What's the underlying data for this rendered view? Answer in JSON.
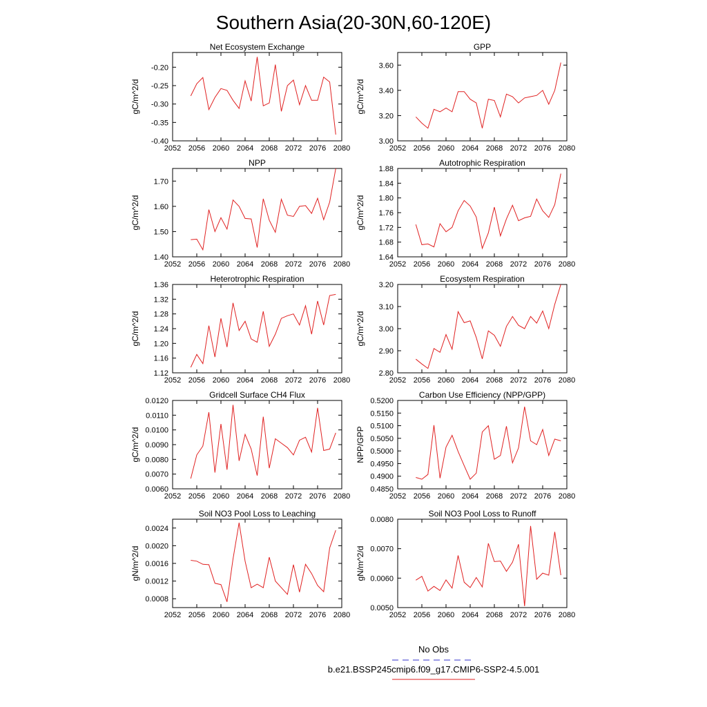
{
  "figure": {
    "title": "Southern Asia(20-30N,60-120E)",
    "legend": [
      {
        "label": "No Obs",
        "color": "#3333cc",
        "style": "dashed"
      },
      {
        "label": "b.e21.BSSP245cmip6.f09_g17.CMIP6-SSP2-4.5.001",
        "color": "#e02020",
        "style": "solid"
      }
    ]
  },
  "chart_data": [
    {
      "type": "line",
      "title": "Net Ecosystem Exchange",
      "ylabel": "gC/m^2/d",
      "xlim": [
        2052,
        2080
      ],
      "ylim": [
        -0.4,
        -0.16
      ],
      "xticks": [
        "2052",
        "2056",
        "2060",
        "2064",
        "2068",
        "2072",
        "2076",
        "2080"
      ],
      "yticks": [
        "-0.40",
        "-0.35",
        "-0.30",
        "-0.25",
        "-0.20"
      ],
      "x": [
        2055,
        2056,
        2057,
        2058,
        2059,
        2060,
        2061,
        2062,
        2063,
        2064,
        2065,
        2066,
        2067,
        2068,
        2069,
        2070,
        2071,
        2072,
        2073,
        2074,
        2075,
        2076,
        2077,
        2078,
        2079
      ],
      "y": [
        -0.278,
        -0.245,
        -0.228,
        -0.315,
        -0.282,
        -0.258,
        -0.263,
        -0.29,
        -0.312,
        -0.237,
        -0.292,
        -0.172,
        -0.305,
        -0.297,
        -0.193,
        -0.32,
        -0.25,
        -0.235,
        -0.302,
        -0.25,
        -0.29,
        -0.29,
        -0.227,
        -0.24,
        -0.383
      ],
      "color": "#e02020"
    },
    {
      "type": "line",
      "title": "GPP",
      "ylabel": "gC/m^2/d",
      "xlim": [
        2052,
        2080
      ],
      "ylim": [
        3.0,
        3.7
      ],
      "xticks": [
        "2052",
        "2056",
        "2060",
        "2064",
        "2068",
        "2072",
        "2076",
        "2080"
      ],
      "yticks": [
        "3.00",
        "3.20",
        "3.40",
        "3.60"
      ],
      "x": [
        2055,
        2056,
        2057,
        2058,
        2059,
        2060,
        2061,
        2062,
        2063,
        2064,
        2065,
        2066,
        2067,
        2068,
        2069,
        2070,
        2071,
        2072,
        2073,
        2074,
        2075,
        2076,
        2077,
        2078,
        2079
      ],
      "y": [
        3.19,
        3.14,
        3.1,
        3.25,
        3.23,
        3.26,
        3.23,
        3.39,
        3.39,
        3.33,
        3.3,
        3.1,
        3.33,
        3.32,
        3.19,
        3.37,
        3.35,
        3.3,
        3.34,
        3.35,
        3.36,
        3.4,
        3.29,
        3.4,
        3.62
      ],
      "color": "#e02020"
    },
    {
      "type": "line",
      "title": "NPP",
      "ylabel": "gC/m^2/d",
      "xlim": [
        2052,
        2080
      ],
      "ylim": [
        1.4,
        1.75
      ],
      "xticks": [
        "2052",
        "2056",
        "2060",
        "2064",
        "2068",
        "2072",
        "2076",
        "2080"
      ],
      "yticks": [
        "1.40",
        "1.50",
        "1.60",
        "1.70"
      ],
      "x": [
        2055,
        2056,
        2057,
        2058,
        2059,
        2060,
        2061,
        2062,
        2063,
        2064,
        2065,
        2066,
        2067,
        2068,
        2069,
        2070,
        2071,
        2072,
        2073,
        2074,
        2075,
        2076,
        2077,
        2078,
        2079
      ],
      "y": [
        1.468,
        1.47,
        1.428,
        1.587,
        1.5,
        1.555,
        1.51,
        1.625,
        1.6,
        1.552,
        1.55,
        1.437,
        1.63,
        1.545,
        1.497,
        1.628,
        1.565,
        1.56,
        1.6,
        1.603,
        1.572,
        1.632,
        1.547,
        1.617,
        1.75
      ],
      "color": "#e02020"
    },
    {
      "type": "line",
      "title": "Autotrophic Respiration",
      "ylabel": "gC/m^2/d",
      "xlim": [
        2052,
        2080
      ],
      "ylim": [
        1.64,
        1.88
      ],
      "xticks": [
        "2052",
        "2056",
        "2060",
        "2064",
        "2068",
        "2072",
        "2076",
        "2080"
      ],
      "yticks": [
        "1.64",
        "1.68",
        "1.72",
        "1.76",
        "1.80",
        "1.84",
        "1.88"
      ],
      "x": [
        2055,
        2056,
        2057,
        2058,
        2059,
        2060,
        2061,
        2062,
        2063,
        2064,
        2065,
        2066,
        2067,
        2068,
        2069,
        2070,
        2071,
        2072,
        2073,
        2074,
        2075,
        2076,
        2077,
        2078,
        2079
      ],
      "y": [
        1.728,
        1.673,
        1.675,
        1.667,
        1.73,
        1.708,
        1.72,
        1.765,
        1.793,
        1.778,
        1.748,
        1.663,
        1.705,
        1.775,
        1.697,
        1.743,
        1.78,
        1.738,
        1.746,
        1.75,
        1.797,
        1.765,
        1.747,
        1.782,
        1.866
      ],
      "color": "#e02020"
    },
    {
      "type": "line",
      "title": "Heterotrophic Respiration",
      "ylabel": "gC/m^2/d",
      "xlim": [
        2052,
        2080
      ],
      "ylim": [
        1.12,
        1.36
      ],
      "xticks": [
        "2052",
        "2056",
        "2060",
        "2064",
        "2068",
        "2072",
        "2076",
        "2080"
      ],
      "yticks": [
        "1.12",
        "1.16",
        "1.20",
        "1.24",
        "1.28",
        "1.32",
        "1.36"
      ],
      "x": [
        2055,
        2056,
        2057,
        2058,
        2059,
        2060,
        2061,
        2062,
        2063,
        2064,
        2065,
        2066,
        2067,
        2068,
        2069,
        2070,
        2071,
        2072,
        2073,
        2074,
        2075,
        2076,
        2077,
        2078,
        2079
      ],
      "y": [
        1.135,
        1.17,
        1.145,
        1.248,
        1.163,
        1.268,
        1.19,
        1.31,
        1.235,
        1.26,
        1.212,
        1.203,
        1.287,
        1.192,
        1.225,
        1.268,
        1.275,
        1.28,
        1.25,
        1.302,
        1.225,
        1.315,
        1.25,
        1.33,
        1.333
      ],
      "color": "#e02020"
    },
    {
      "type": "line",
      "title": "Ecosystem Respiration",
      "ylabel": "gC/m^2/d",
      "xlim": [
        2052,
        2080
      ],
      "ylim": [
        2.8,
        3.2
      ],
      "xticks": [
        "2052",
        "2056",
        "2060",
        "2064",
        "2068",
        "2072",
        "2076",
        "2080"
      ],
      "yticks": [
        "2.80",
        "2.90",
        "3.00",
        "3.10",
        "3.20"
      ],
      "x": [
        2055,
        2056,
        2057,
        2058,
        2059,
        2060,
        2061,
        2062,
        2063,
        2064,
        2065,
        2066,
        2067,
        2068,
        2069,
        2070,
        2071,
        2072,
        2073,
        2074,
        2075,
        2076,
        2077,
        2078,
        2079
      ],
      "y": [
        2.862,
        2.84,
        2.82,
        2.91,
        2.893,
        2.973,
        2.907,
        3.077,
        3.027,
        3.035,
        2.96,
        2.863,
        2.99,
        2.97,
        2.92,
        3.01,
        3.055,
        3.015,
        3.0,
        3.055,
        3.025,
        3.08,
        3.0,
        3.11,
        3.2
      ],
      "color": "#e02020"
    },
    {
      "type": "line",
      "title": "Gridcell Surface CH4 Flux",
      "ylabel": "gC/m^2/d",
      "xlim": [
        2052,
        2080
      ],
      "ylim": [
        0.006,
        0.012
      ],
      "xticks": [
        "2052",
        "2056",
        "2060",
        "2064",
        "2068",
        "2072",
        "2076",
        "2080"
      ],
      "yticks": [
        "0.0060",
        "0.0070",
        "0.0080",
        "0.0090",
        "0.0100",
        "0.0110",
        "0.0120"
      ],
      "x": [
        2055,
        2056,
        2057,
        2058,
        2059,
        2060,
        2061,
        2062,
        2063,
        2064,
        2065,
        2066,
        2067,
        2068,
        2069,
        2070,
        2071,
        2072,
        2073,
        2074,
        2075,
        2076,
        2077,
        2078,
        2079
      ],
      "y": [
        0.0067,
        0.0083,
        0.0089,
        0.0112,
        0.0071,
        0.0104,
        0.0073,
        0.0117,
        0.0079,
        0.0097,
        0.0087,
        0.0069,
        0.0109,
        0.0074,
        0.0094,
        0.0091,
        0.0088,
        0.0083,
        0.0093,
        0.0095,
        0.0085,
        0.0115,
        0.0086,
        0.0087,
        0.0098
      ],
      "color": "#e02020"
    },
    {
      "type": "line",
      "title": "Carbon Use Efficiency (NPP/GPP)",
      "ylabel": "NPP/GPP",
      "xlim": [
        2052,
        2080
      ],
      "ylim": [
        0.485,
        0.52
      ],
      "xticks": [
        "2052",
        "2056",
        "2060",
        "2064",
        "2068",
        "2072",
        "2076",
        "2080"
      ],
      "yticks": [
        "0.4850",
        "0.4900",
        "0.4950",
        "0.5000",
        "0.5050",
        "0.5100",
        "0.5150",
        "0.5200"
      ],
      "x": [
        2055,
        2056,
        2057,
        2058,
        2059,
        2060,
        2061,
        2062,
        2063,
        2064,
        2065,
        2066,
        2067,
        2068,
        2069,
        2070,
        2071,
        2072,
        2073,
        2074,
        2075,
        2076,
        2077,
        2078,
        2079
      ],
      "y": [
        0.4895,
        0.4888,
        0.4907,
        0.5102,
        0.4892,
        0.5015,
        0.5062,
        0.4998,
        0.4942,
        0.4888,
        0.4912,
        0.5075,
        0.51,
        0.4967,
        0.4982,
        0.5098,
        0.4953,
        0.5012,
        0.5175,
        0.504,
        0.5025,
        0.5085,
        0.4982,
        0.5047,
        0.504
      ],
      "color": "#e02020"
    },
    {
      "type": "line",
      "title": "Soil NO3 Pool Loss to Leaching",
      "ylabel": "gN/m^2/d",
      "xlim": [
        2052,
        2080
      ],
      "ylim": [
        0.0006,
        0.0026
      ],
      "xticks": [
        "2052",
        "2056",
        "2060",
        "2064",
        "2068",
        "2072",
        "2076",
        "2080"
      ],
      "yticks": [
        "0.0008",
        "0.0012",
        "0.0016",
        "0.0020",
        "0.0024"
      ],
      "x": [
        2055,
        2056,
        2057,
        2058,
        2059,
        2060,
        2061,
        2062,
        2063,
        2064,
        2065,
        2066,
        2067,
        2068,
        2069,
        2070,
        2071,
        2072,
        2073,
        2074,
        2075,
        2076,
        2077,
        2078,
        2079
      ],
      "y": [
        0.00167,
        0.00165,
        0.00158,
        0.00157,
        0.00115,
        0.00112,
        0.00073,
        0.0017,
        0.00252,
        0.00165,
        0.00105,
        0.00113,
        0.00105,
        0.00174,
        0.0012,
        0.00105,
        0.0009,
        0.00157,
        0.00095,
        0.00158,
        0.00137,
        0.0011,
        0.00096,
        0.00195,
        0.00235
      ],
      "color": "#e02020"
    },
    {
      "type": "line",
      "title": "Soil NO3 Pool Loss to Runoff",
      "ylabel": "gN/m^2/d",
      "xlim": [
        2052,
        2080
      ],
      "ylim": [
        0.005,
        0.008
      ],
      "xticks": [
        "2052",
        "2056",
        "2060",
        "2064",
        "2068",
        "2072",
        "2076",
        "2080"
      ],
      "yticks": [
        "0.0050",
        "0.0060",
        "0.0070",
        "0.0080"
      ],
      "x": [
        2055,
        2056,
        2057,
        2058,
        2059,
        2060,
        2061,
        2062,
        2063,
        2064,
        2065,
        2066,
        2067,
        2068,
        2069,
        2070,
        2071,
        2072,
        2073,
        2074,
        2075,
        2076,
        2077,
        2078,
        2079
      ],
      "y": [
        0.00593,
        0.00606,
        0.00556,
        0.00572,
        0.00558,
        0.00594,
        0.00566,
        0.00677,
        0.00586,
        0.00568,
        0.00602,
        0.0057,
        0.00718,
        0.00656,
        0.00658,
        0.00623,
        0.00654,
        0.00715,
        0.00505,
        0.00777,
        0.00596,
        0.00617,
        0.0061,
        0.00757,
        0.0061
      ],
      "color": "#e02020"
    }
  ]
}
